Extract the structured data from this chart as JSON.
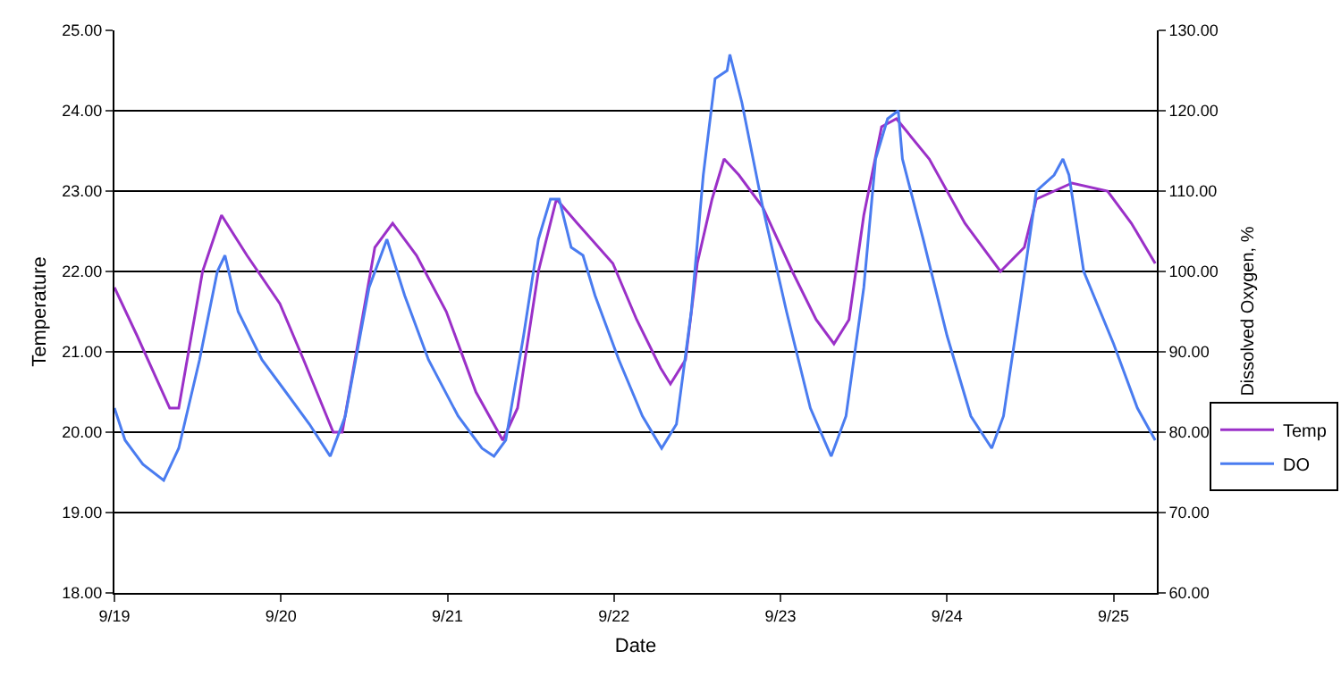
{
  "chart_data": {
    "type": "line",
    "xlabel": "Date",
    "ylabel": "Temperature",
    "y2label": "Dissolved Oxygen, %",
    "xlim": [
      "--09-19",
      "--09-25T06:14"
    ],
    "xticks": [
      {
        "value": "--09-19",
        "label": "9/19"
      },
      {
        "value": "--09-20",
        "label": "9/20"
      },
      {
        "value": "--09-21",
        "label": "9/21"
      },
      {
        "value": "--09-22",
        "label": "9/22"
      },
      {
        "value": "--09-23",
        "label": "9/23"
      },
      {
        "value": "--09-24",
        "label": "9/24"
      },
      {
        "value": "--09-25",
        "label": "9/25"
      }
    ],
    "ylim": [
      18,
      25
    ],
    "yticks": [
      {
        "value": 18,
        "label": "18.00"
      },
      {
        "value": 19,
        "label": "19.00"
      },
      {
        "value": 20,
        "label": "20.00"
      },
      {
        "value": 21,
        "label": "21.00"
      },
      {
        "value": 22,
        "label": "22.00"
      },
      {
        "value": 23,
        "label": "23.00"
      },
      {
        "value": 24,
        "label": "24.00"
      },
      {
        "value": 25,
        "label": "25.00"
      }
    ],
    "y2lim": [
      60,
      130
    ],
    "y2ticks": [
      {
        "value": 60,
        "label": "60.00"
      },
      {
        "value": 70,
        "label": "70.00"
      },
      {
        "value": 80,
        "label": "80.00"
      },
      {
        "value": 90,
        "label": "90.00"
      },
      {
        "value": 100,
        "label": "100.00"
      },
      {
        "value": 110,
        "label": "110.00"
      },
      {
        "value": 120,
        "label": "120.00"
      },
      {
        "value": 130,
        "label": "130.00"
      }
    ],
    "grid": "y",
    "legend": "right",
    "marker": "none",
    "line_style": "solid",
    "series": [
      {
        "name": "Temp",
        "color": "#9b30c8",
        "x": [
          "--09-19T00:00",
          "--09-19T03:16",
          "--09-19T07:58",
          "--09-19T09:16",
          "--09-19T12:42",
          "--09-19T15:26",
          "--09-19T19:06",
          "--09-19T23:50",
          "--09-20T03:16",
          "--09-20T07:32",
          "--09-20T08:50",
          "--09-20T13:32",
          "--09-20T16:06",
          "--09-20T19:32",
          "--09-20T23:50",
          "--09-21T04:06",
          "--09-21T07:58",
          "--09-21T10:06",
          "--09-21T13:06",
          "--09-21T15:42",
          "--09-21T18:42",
          "--09-21T23:50",
          "--09-22T03:16",
          "--09-22T06:42",
          "--09-22T08:08",
          "--09-22T10:18",
          "--09-22T12:00",
          "--09-22T14:08",
          "--09-22T15:52",
          "--09-22T18:00",
          "--09-22T21:26",
          "--09-23T01:42",
          "--09-23T05:08",
          "--09-23T07:42",
          "--09-23T09:52",
          "--09-23T12:00",
          "--09-23T14:34",
          "--09-23T16:42",
          "--09-23T21:26",
          "--09-24T02:34",
          "--09-24T07:42",
          "--09-24T11:08",
          "--09-24T12:52",
          "--09-24T18:00",
          "--09-24T23:08",
          "--09-25T02:34",
          "--09-25T06:00"
        ],
        "values": [
          21.8,
          21.2,
          20.3,
          20.3,
          22.0,
          22.7,
          22.2,
          21.6,
          20.9,
          20.0,
          20.0,
          22.3,
          22.6,
          22.2,
          21.5,
          20.5,
          19.9,
          20.3,
          22.0,
          22.9,
          22.6,
          22.1,
          21.4,
          20.8,
          20.6,
          20.9,
          22.1,
          22.9,
          23.4,
          23.2,
          22.8,
          22.0,
          21.4,
          21.1,
          21.4,
          22.7,
          23.8,
          23.9,
          23.4,
          22.6,
          22.0,
          22.3,
          22.9,
          23.1,
          23.0,
          22.6,
          22.1
        ]
      },
      {
        "name": "DO",
        "color": "#4a7cf0",
        "axis": "y2",
        "x": [
          "--09-19T00:00",
          "--09-19T01:32",
          "--09-19T04:06",
          "--09-19T07:06",
          "--09-19T09:16",
          "--09-19T12:16",
          "--09-19T14:50",
          "--09-19T15:56",
          "--09-19T17:50",
          "--09-19T21:16",
          "--09-20T00:42",
          "--09-20T04:06",
          "--09-20T07:06",
          "--09-20T09:16",
          "--09-20T12:42",
          "--09-20T15:16",
          "--09-20T17:50",
          "--09-20T21:16",
          "--09-21T01:32",
          "--09-21T04:58",
          "--09-21T06:42",
          "--09-21T08:24",
          "--09-21T10:58",
          "--09-21T13:06",
          "--09-21T14:50",
          "--09-21T16:06",
          "--09-21T17:50",
          "--09-21T19:32",
          "--09-21T21:16",
          "--09-22T00:42",
          "--09-22T04:06",
          "--09-22T06:52",
          "--09-22T09:00",
          "--09-22T11:08",
          "--09-22T12:52",
          "--09-22T14:34",
          "--09-22T16:18",
          "--09-22T16:42",
          "--09-22T18:26",
          "--09-22T21:26",
          "--09-23T00:52",
          "--09-23T04:18",
          "--09-23T07:18",
          "--09-23T09:26",
          "--09-23T12:00",
          "--09-23T13:42",
          "--09-23T15:26",
          "--09-23T16:58",
          "--09-23T17:34",
          "--09-23T20:34",
          "--09-24T00:00",
          "--09-24T03:26",
          "--09-24T06:26",
          "--09-24T08:08",
          "--09-24T10:42",
          "--09-24T12:52",
          "--09-24T15:26",
          "--09-24T16:42",
          "--09-24T17:34",
          "--09-24T19:42",
          "--09-25T00:00",
          "--09-25T03:26",
          "--09-25T06:00"
        ],
        "values": [
          83,
          79,
          76,
          74,
          78,
          89,
          100,
          102,
          95,
          89,
          85,
          81,
          77,
          82,
          98,
          104,
          97,
          89,
          82,
          78,
          77,
          79,
          92,
          104,
          109,
          109,
          103,
          102,
          97,
          89,
          82,
          78,
          81,
          95,
          112,
          124,
          125,
          127,
          121,
          108,
          95,
          83,
          77,
          82,
          98,
          114,
          119,
          120,
          114,
          104,
          92,
          82,
          78,
          82,
          97,
          110,
          112,
          114,
          112,
          100,
          91,
          83,
          79
        ]
      }
    ]
  }
}
